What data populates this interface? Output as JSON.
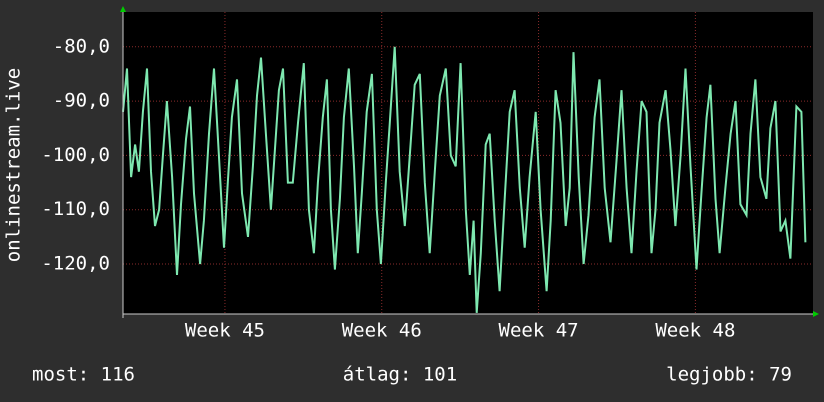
{
  "chart_data": {
    "type": "line",
    "y_label": "onlinestream.live",
    "x": [
      0,
      0.18,
      0.36,
      0.54,
      0.71,
      0.89,
      1.07,
      1.25,
      1.43,
      1.61,
      1.78,
      1.96,
      2.19,
      2.41,
      2.59,
      2.81,
      2.99,
      3.17,
      3.44,
      3.61,
      3.84,
      4.06,
      4.28,
      4.51,
      4.68,
      4.86,
      5.09,
      5.31,
      5.58,
      5.8,
      5.98,
      6.16,
      6.38,
      6.6,
      6.78,
      6.96,
      7.14,
      7.36,
      7.58,
      7.81,
      8.07,
      8.3,
      8.52,
      8.7,
      8.92,
      9.1,
      9.28,
      9.46,
      9.68,
      9.86,
      10.08,
      10.31,
      10.48,
      10.66,
      10.88,
      11.11,
      11.33,
      11.51,
      11.73,
      11.91,
      12.13,
      12.35,
      12.58,
      12.8,
      13.02,
      13.25,
      13.47,
      13.69,
      13.92,
      14.14,
      14.41,
      14.63,
      14.85,
      15.07,
      15.3,
      15.48,
      15.65,
      15.79,
      15.97,
      16.19,
      16.37,
      16.59,
      16.81,
      17.04,
      17.26,
      17.48,
      17.71,
      17.93,
      18.15,
      18.42,
      18.64,
      18.91,
      19.09,
      19.31,
      19.53,
      19.76,
      19.94,
      20.11,
      20.34,
      20.56,
      20.78,
      21.05,
      21.27,
      21.5,
      21.76,
      22.03,
      22.25,
      22.48,
      22.7,
      22.92,
      23.15,
      23.37,
      23.59,
      23.77,
      23.95,
      24.22,
      24.44,
      24.66,
      24.89,
      25.11,
      25.33,
      25.6,
      25.82,
      26.05,
      26.22,
      26.45,
      26.63,
      26.89,
      27.12,
      27.34,
      27.56,
      27.83,
      28.01,
      28.23,
      28.45,
      28.72,
      28.9,
      29.12,
      29.35,
      29.57,
      29.79,
      30.06,
      30.28,
      30.46
    ],
    "series": [
      {
        "color": "#7ee8b0",
        "values": [
          -92,
          -84,
          -104,
          -98,
          -103,
          -92,
          -84,
          -103,
          -113,
          -110,
          -100,
          -90,
          -104,
          -122,
          -109,
          -97,
          -91,
          -107,
          -120,
          -112,
          -96,
          -84,
          -100,
          -117,
          -105,
          -93,
          -86,
          -107,
          -115,
          -102,
          -89,
          -82,
          -96,
          -110,
          -99,
          -88,
          -84,
          -105,
          -105,
          -94,
          -83,
          -110,
          -118,
          -105,
          -93,
          -86,
          -110,
          -121,
          -108,
          -93,
          -84,
          -102,
          -118,
          -107,
          -92,
          -85,
          -110,
          -120,
          -105,
          -94,
          -80,
          -103,
          -113,
          -100,
          -87,
          -85,
          -105,
          -118,
          -103,
          -89,
          -84,
          -100,
          -102,
          -83,
          -110,
          -122,
          -112,
          -129,
          -118,
          -98,
          -96,
          -112,
          -125,
          -108,
          -92,
          -88,
          -106,
          -117,
          -104,
          -92,
          -110,
          -125,
          -112,
          -88,
          -94,
          -113,
          -106,
          -81,
          -104,
          -120,
          -111,
          -93,
          -86,
          -106,
          -116,
          -101,
          -88,
          -106,
          -118,
          -103,
          -90,
          -92,
          -118,
          -110,
          -94,
          -88,
          -99,
          -113,
          -100,
          -84,
          -102,
          -121,
          -107,
          -93,
          -87,
          -108,
          -118,
          -106,
          -96,
          -90,
          -109,
          -111,
          -96,
          -86,
          -104,
          -108,
          -95,
          -90,
          -114,
          -112,
          -119,
          -91,
          -92,
          -116
        ]
      }
    ],
    "xlim": [
      0,
      30.8
    ],
    "xticks": [
      {
        "value": 4.55,
        "label": "Week 45"
      },
      {
        "value": 11.55,
        "label": "Week 46"
      },
      {
        "value": 18.55,
        "label": "Week 47"
      },
      {
        "value": 25.55,
        "label": "Week 48"
      }
    ],
    "ylim": [
      -129.2,
      -73.6
    ],
    "yticks": [
      {
        "value": -120,
        "label": "-120,0"
      },
      {
        "value": -110,
        "label": "-110,0"
      },
      {
        "value": -100,
        "label": "-100,0"
      },
      {
        "value": -90,
        "label": "-90,0"
      },
      {
        "value": -80,
        "label": "-80,0"
      }
    ],
    "grid": true,
    "footer": [
      "most: 116",
      "átlag: 101",
      "legjobb: 79"
    ]
  }
}
